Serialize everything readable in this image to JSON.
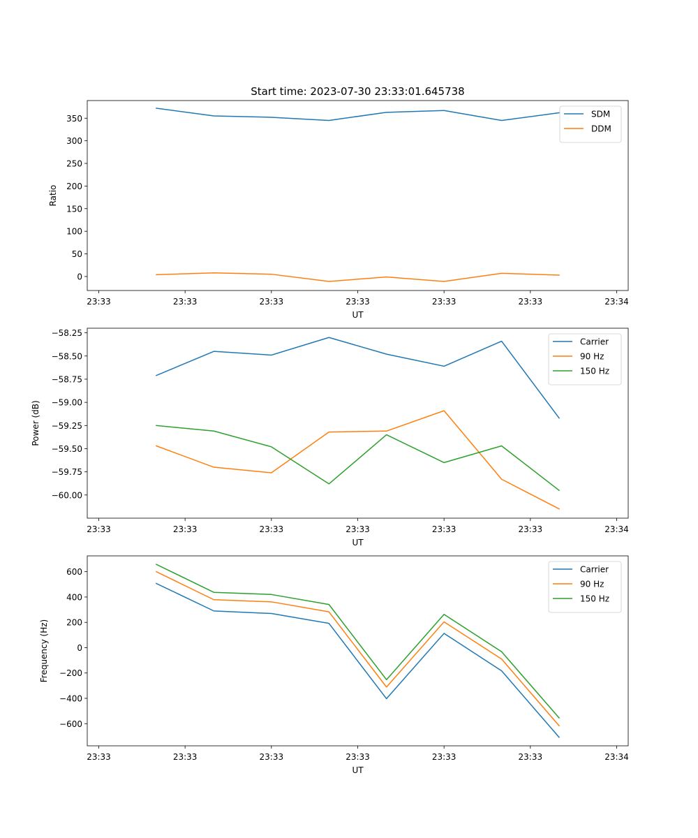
{
  "figure_title": "Start time: 2023-07-30 23:33:01.645738",
  "colors": {
    "blue": "#1f77b4",
    "orange": "#ff7f0e",
    "green": "#2ca02c"
  },
  "chart_data": [
    {
      "type": "line",
      "title": "Start time: 2023-07-30 23:33:01.645738",
      "xlabel": "UT",
      "ylabel": "Ratio",
      "x": [
        1,
        2,
        3,
        4,
        5,
        6,
        7,
        8
      ],
      "xlim": [
        -0.2,
        9.2
      ],
      "xticks": [
        0,
        1.5,
        3,
        4.5,
        6,
        7.5,
        9
      ],
      "xtick_labels": [
        "23:33",
        "23:33",
        "23:33",
        "23:33",
        "23:33",
        "23:33",
        "23:34"
      ],
      "ylim": [
        -31,
        389
      ],
      "yticks": [
        0,
        50,
        100,
        150,
        200,
        250,
        300,
        350
      ],
      "ytick_labels": [
        "0",
        "50",
        "100",
        "150",
        "200",
        "250",
        "300",
        "350"
      ],
      "legend_position": "top-right",
      "series": [
        {
          "name": "SDM",
          "color": "#1f77b4",
          "values": [
            372,
            355,
            352,
            345,
            363,
            367,
            345,
            362
          ]
        },
        {
          "name": "DDM",
          "color": "#ff7f0e",
          "values": [
            4,
            8,
            5,
            -11,
            -1,
            -11,
            7,
            3
          ]
        }
      ]
    },
    {
      "type": "line",
      "xlabel": "UT",
      "ylabel": "Power (dB)",
      "x": [
        1,
        2,
        3,
        4,
        5,
        6,
        7,
        8
      ],
      "xlim": [
        -0.2,
        9.2
      ],
      "xticks": [
        0,
        1.5,
        3,
        4.5,
        6,
        7.5,
        9
      ],
      "xtick_labels": [
        "23:33",
        "23:33",
        "23:33",
        "23:33",
        "23:33",
        "23:33",
        "23:34"
      ],
      "ylim": [
        -60.25,
        -58.2
      ],
      "yticks": [
        -58.25,
        -58.5,
        -58.75,
        -59.0,
        -59.25,
        -59.5,
        -59.75,
        -60.0
      ],
      "ytick_labels": [
        "−58.25",
        "−58.50",
        "−58.75",
        "−59.00",
        "−59.25",
        "−59.50",
        "−59.75",
        "−60.00"
      ],
      "legend_position": "top-right",
      "series": [
        {
          "name": "Carrier",
          "color": "#1f77b4",
          "values": [
            -58.71,
            -58.45,
            -58.49,
            -58.3,
            -58.48,
            -58.61,
            -58.34,
            -59.17
          ]
        },
        {
          "name": "90 Hz",
          "color": "#ff7f0e",
          "values": [
            -59.47,
            -59.7,
            -59.76,
            -59.32,
            -59.31,
            -59.09,
            -59.83,
            -60.15
          ]
        },
        {
          "name": "150 Hz",
          "color": "#2ca02c",
          "values": [
            -59.25,
            -59.31,
            -59.48,
            -59.88,
            -59.35,
            -59.65,
            -59.47,
            -59.95
          ]
        }
      ]
    },
    {
      "type": "line",
      "xlabel": "UT",
      "ylabel": "Frequency (Hz)",
      "x": [
        1,
        2,
        3,
        4,
        5,
        6,
        7,
        8
      ],
      "xlim": [
        -0.2,
        9.2
      ],
      "xticks": [
        0,
        1.5,
        3,
        4.5,
        6,
        7.5,
        9
      ],
      "xtick_labels": [
        "23:33",
        "23:33",
        "23:33",
        "23:33",
        "23:33",
        "23:33",
        "23:34"
      ],
      "ylim": [
        -775,
        725
      ],
      "yticks": [
        -600,
        -400,
        -200,
        0,
        200,
        400,
        600
      ],
      "ytick_labels": [
        "−600",
        "−400",
        "−200",
        "0",
        "200",
        "400",
        "600"
      ],
      "legend_position": "top-right",
      "series": [
        {
          "name": "Carrier",
          "color": "#1f77b4",
          "values": [
            507,
            290,
            270,
            192,
            -403,
            113,
            -183,
            -708
          ]
        },
        {
          "name": "90 Hz",
          "color": "#ff7f0e",
          "values": [
            600,
            379,
            362,
            283,
            -311,
            204,
            -90,
            -617
          ]
        },
        {
          "name": "150 Hz",
          "color": "#2ca02c",
          "values": [
            658,
            437,
            420,
            341,
            -253,
            263,
            -32,
            -555
          ]
        }
      ]
    }
  ]
}
